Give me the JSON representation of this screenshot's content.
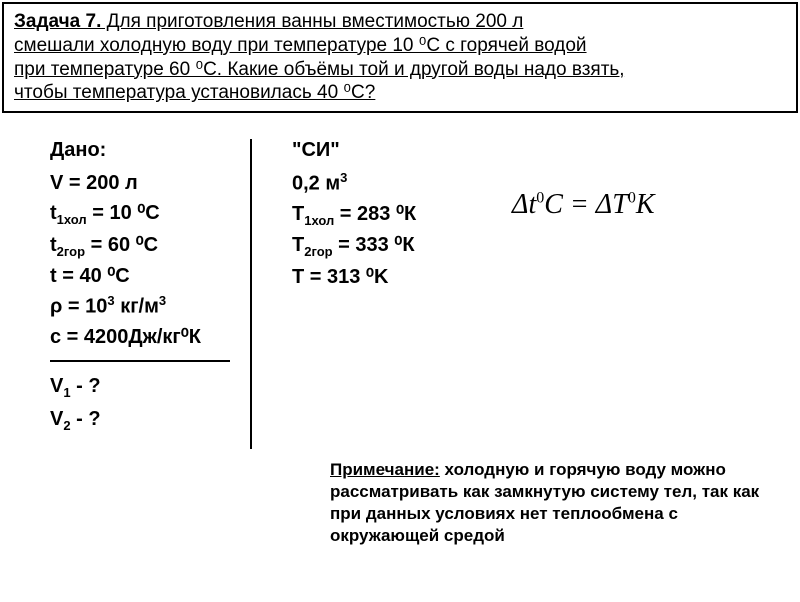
{
  "problem": {
    "label": "Задача 7.",
    "line1": " Для приготовления ванны вместимостью 200 л",
    "line2": "смешали холодную воду при температуре 10 ⁰С с горячей водой",
    "line3": "при температуре 60 ⁰С. Какие объёмы той и другой воды надо взять,",
    "line4": " чтобы температура установилась 40 ⁰С?"
  },
  "given": {
    "header": "Дано:",
    "v": "V = 200 л",
    "t1": "t",
    "t1_sub": "1хол",
    "t1_val": " = 10 ⁰С",
    "t2": "t",
    "t2_sub": "2гор",
    "t2_val": " = 60 ⁰С",
    "t": "t  = 40 ⁰С",
    "rho": "ρ = 10",
    "rho_sup": "3",
    "rho_unit": " кг/м",
    "rho_unit_sup": "3",
    "c": "c = 4200Дж/кг⁰К"
  },
  "find": {
    "v1": "V",
    "v1_sub": "1",
    "v1_q": " - ?",
    "v2": "V",
    "v2_sub": "2",
    "v2_q": " - ?"
  },
  "si": {
    "header": "\"СИ\"",
    "v": " 0,2 м",
    "v_sup": "3",
    "t1": "T",
    "t1_sub": "1хол",
    "t1_val": " = 283 ⁰К",
    "t2": "T",
    "t2_sub": "2гор",
    "t2_val": " = 333 ⁰К",
    "t": "T = 313 ⁰K"
  },
  "formula": {
    "text": "Δt⁰C = ΔT⁰K"
  },
  "note": {
    "label": "Примечание:",
    "text": " холодную и горячую воду можно рассматривать как замкнутую систему тел, так как при данных условиях нет теплообмена с окружающей средой"
  },
  "style": {
    "bg": "#ffffff",
    "border": "#000000",
    "text": "#000000"
  }
}
